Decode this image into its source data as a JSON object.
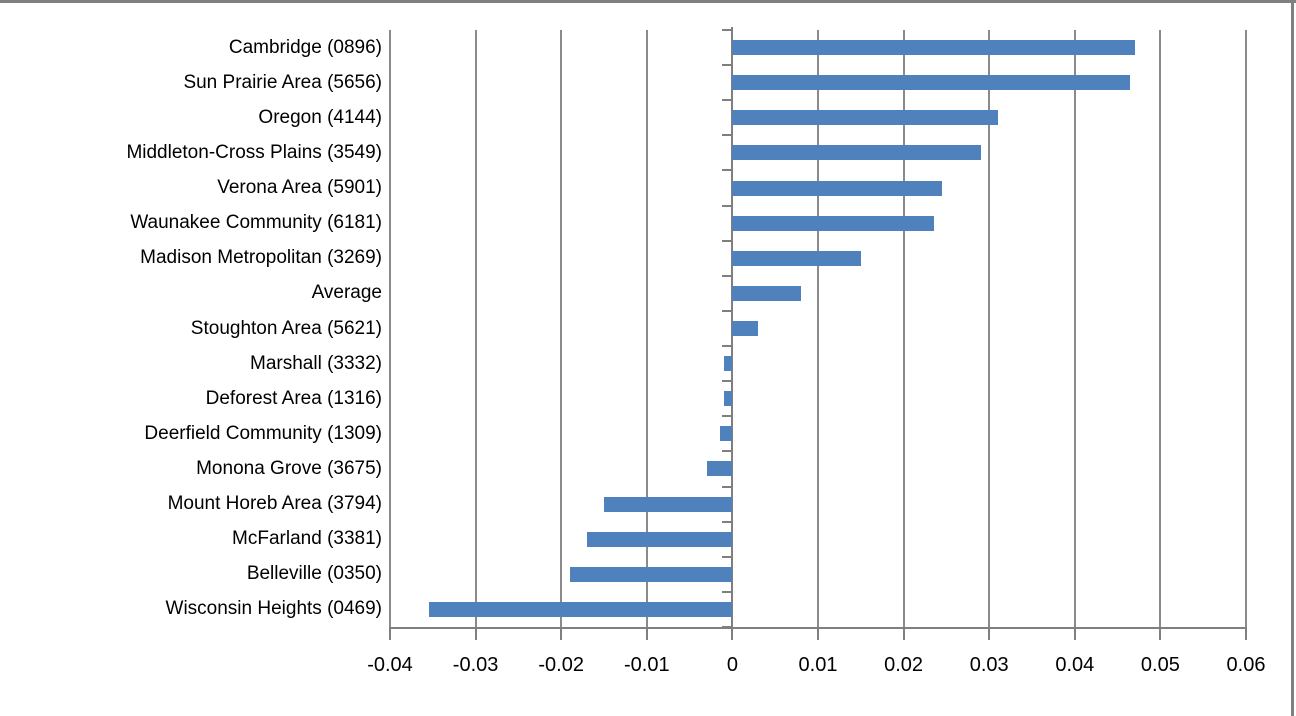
{
  "chart_data": {
    "type": "bar",
    "orientation": "horizontal",
    "title": "",
    "xlabel": "",
    "ylabel": "",
    "categories": [
      "Cambridge (0896)",
      "Sun Prairie Area (5656)",
      "Oregon (4144)",
      "Middleton-Cross Plains (3549)",
      "Verona Area (5901)",
      "Waunakee Community (6181)",
      "Madison Metropolitan (3269)",
      "Average",
      "Stoughton Area (5621)",
      "Marshall (3332)",
      "Deforest Area (1316)",
      "Deerfield Community (1309)",
      "Monona Grove (3675)",
      "Mount Horeb Area (3794)",
      "McFarland (3381)",
      "Belleville (0350)",
      "Wisconsin Heights (0469)"
    ],
    "values": [
      0.047,
      0.0465,
      0.031,
      0.029,
      0.0245,
      0.0235,
      0.015,
      0.008,
      0.003,
      -0.001,
      -0.001,
      -0.0015,
      -0.003,
      -0.015,
      -0.017,
      -0.019,
      -0.0355
    ],
    "xlim": [
      -0.04,
      0.06
    ],
    "x_ticks": [
      -0.04,
      -0.03,
      -0.02,
      -0.01,
      0,
      0.01,
      0.02,
      0.03,
      0.04,
      0.05,
      0.06
    ],
    "x_tick_labels": [
      "-0.04",
      "-0.03",
      "-0.02",
      "-0.01",
      "0",
      "0.01",
      "0.02",
      "0.03",
      "0.04",
      "0.05",
      "0.06"
    ],
    "grid": true,
    "legend": false,
    "bar_color": "#4f81bd",
    "gridline_color": "#8a8a8a",
    "axis_color": "#7f7f7f",
    "background_color": "#ffffff",
    "border_color": "#808080"
  }
}
